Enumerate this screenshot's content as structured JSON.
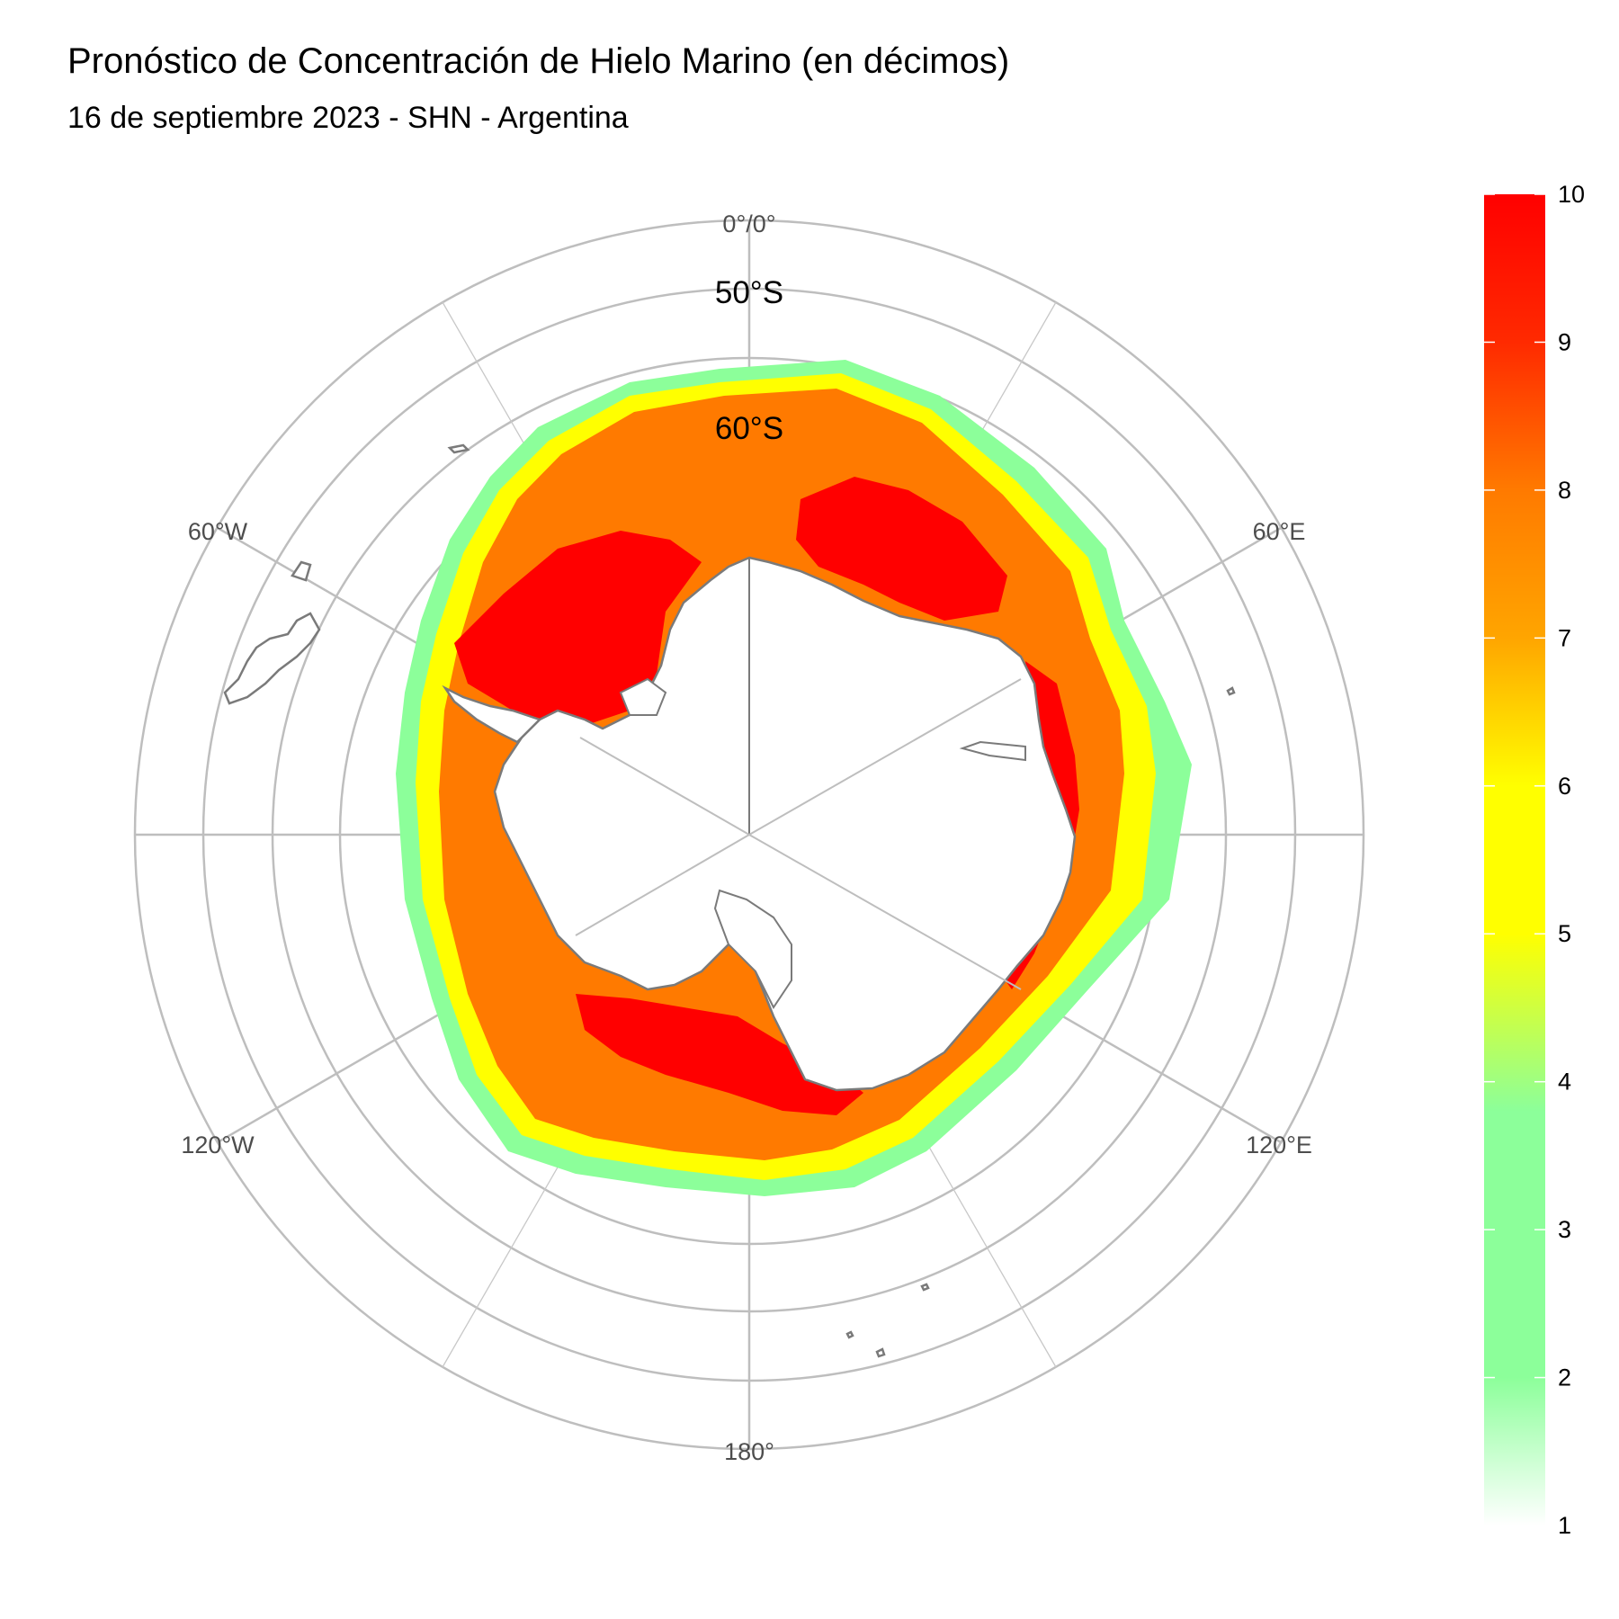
{
  "title": "Pronóstico de Concentración de Hielo Marino (en décimos)",
  "subtitle": "16 de septiembre 2023 - SHN - Argentina",
  "map": {
    "projection": "south-polar-stereographic",
    "longitude_labels": [
      {
        "lon": 0,
        "text": "0°/0°"
      },
      {
        "lon": 60,
        "text": "60°E"
      },
      {
        "lon": 120,
        "text": "120°E"
      },
      {
        "lon": 180,
        "text": "180°"
      },
      {
        "lon": -120,
        "text": "120°W"
      },
      {
        "lon": -60,
        "text": "60°W"
      }
    ],
    "latitude_labels": [
      {
        "lat": -50,
        "text": "50°S"
      },
      {
        "lat": -60,
        "text": "60°S"
      }
    ],
    "layer_colors": {
      "ice_1_to_4": "#8cff9a",
      "ice_5_to_6": "#ffff00",
      "ice_7_to_8": "#ff7a00",
      "ice_9_to_10": "#ff0000",
      "graticule": "#bebebe",
      "coastline": "#7a7a7a"
    }
  },
  "colorbar": {
    "label_min": 1,
    "label_max": 10,
    "ticks": [
      "1",
      "2",
      "3",
      "4",
      "5",
      "6",
      "7",
      "8",
      "9",
      "10"
    ],
    "gradient": [
      {
        "value": 1,
        "color": "#ffffff"
      },
      {
        "value": 2,
        "color": "#8cff9a"
      },
      {
        "value": 3.8,
        "color": "#8cff9a"
      },
      {
        "value": 5,
        "color": "#ffff00"
      },
      {
        "value": 6,
        "color": "#ffff00"
      },
      {
        "value": 7,
        "color": "#ffa500"
      },
      {
        "value": 8,
        "color": "#ff7a00"
      },
      {
        "value": 9,
        "color": "#ff2a00"
      },
      {
        "value": 10,
        "color": "#ff0000"
      }
    ]
  }
}
